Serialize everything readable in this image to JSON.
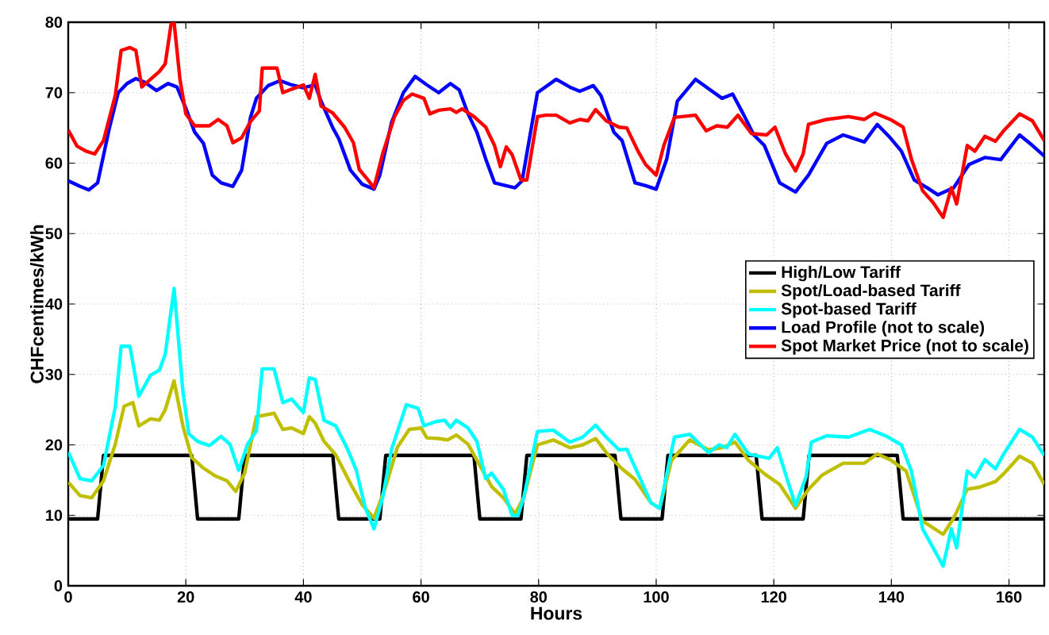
{
  "chart_data": {
    "type": "line",
    "xlabel": "Hours",
    "ylabel": "CHFcentimes/kWh",
    "xlim": [
      0,
      166
    ],
    "ylim": [
      0,
      80
    ],
    "xticks": [
      0,
      20,
      40,
      60,
      80,
      100,
      120,
      140,
      160
    ],
    "yticks": [
      0,
      10,
      20,
      30,
      40,
      50,
      60,
      70,
      80
    ],
    "grid": true,
    "legend": "right",
    "marker": "none",
    "line_style": "solid",
    "series": [
      {
        "name": "High/Low Tariff",
        "color": "#000000",
        "x": [
          0,
          5,
          6,
          21,
          22,
          29,
          30,
          45,
          46,
          53,
          54,
          69,
          70,
          77,
          78,
          93,
          94,
          101,
          102,
          117,
          118,
          125,
          126,
          141,
          142,
          166
        ],
        "values": [
          9.5,
          9.5,
          18.5,
          18.5,
          9.5,
          9.5,
          18.5,
          18.5,
          9.5,
          9.5,
          18.5,
          18.5,
          9.5,
          9.5,
          18.5,
          18.5,
          9.5,
          9.5,
          18.5,
          18.5,
          9.5,
          9.5,
          18.5,
          18.5,
          9.5,
          9.5
        ]
      },
      {
        "name": "Spot/Load-based Tariff",
        "color": "#bfbf00",
        "x": [
          0,
          2,
          4,
          6,
          8,
          9.5,
          11,
          12,
          14,
          15.5,
          16.5,
          18,
          19.5,
          21,
          23,
          25,
          27,
          28.5,
          30,
          32,
          35,
          36.5,
          38,
          40,
          41,
          42,
          43.5,
          45.5,
          48,
          50,
          52,
          54,
          56,
          58,
          60,
          61,
          63,
          64.5,
          66,
          68,
          70,
          72,
          74,
          76,
          77.5,
          79.8,
          82.5,
          85.3,
          87.5,
          89.7,
          91.9,
          94.2,
          96.4,
          99.1,
          100.6,
          102.6,
          105.7,
          108.9,
          111.2,
          113.4,
          115.7,
          118.4,
          121,
          123.7,
          125.9,
          128.2,
          131.8,
          135.4,
          137.6,
          139.8,
          142.5,
          145.3,
          148.8,
          150.6,
          152.9,
          155,
          157.7,
          159.1,
          161.8,
          164,
          166
        ],
        "values": [
          14.7,
          12.8,
          12.5,
          14.9,
          20.1,
          25.5,
          26,
          22.7,
          23.7,
          23.5,
          25,
          29.1,
          22.7,
          18.2,
          16.7,
          15.6,
          14.9,
          13.4,
          16,
          24,
          24.5,
          22.2,
          22.4,
          21.6,
          24,
          23.1,
          20.5,
          18.6,
          14.5,
          11.5,
          9.6,
          14.1,
          19.7,
          22.2,
          22.4,
          21,
          20.9,
          20.7,
          21.4,
          20.1,
          17.1,
          14.1,
          12.5,
          10.2,
          12.6,
          20,
          20.7,
          19.6,
          20,
          20.9,
          18.5,
          16.6,
          15.1,
          11.8,
          11,
          17.8,
          20.7,
          19.3,
          19.6,
          20.4,
          17.8,
          15.9,
          14.4,
          11,
          13.7,
          15.7,
          17.4,
          17.4,
          18.7,
          17.9,
          16.3,
          9.2,
          7.3,
          9.6,
          13.7,
          14,
          14.8,
          15.9,
          18.4,
          17.4,
          14.4
        ]
      },
      {
        "name": "Spot-based Tariff",
        "color": "#00ffff",
        "x": [
          0,
          2,
          4,
          6,
          8,
          9,
          10.5,
          12,
          14,
          15.5,
          16.5,
          18,
          19.5,
          20.5,
          22,
          24,
          26,
          27.5,
          29,
          30.5,
          32,
          33,
          35,
          36.5,
          38,
          40,
          41,
          42,
          43.5,
          45.5,
          47.5,
          49,
          50.5,
          52,
          53.5,
          55,
          57.5,
          59.5,
          60.5,
          62.5,
          64,
          65,
          66,
          68,
          69.5,
          71,
          72,
          74,
          75.5,
          76.5,
          77.5,
          79.8,
          82.5,
          85.3,
          87.5,
          89.7,
          91.5,
          93.7,
          95,
          96.9,
          99.1,
          100.6,
          103.1,
          105.7,
          108.9,
          110.7,
          112,
          113.4,
          115.7,
          119.2,
          120.6,
          122.4,
          123.7,
          125.5,
          126.4,
          129,
          132.7,
          136.3,
          139,
          141.7,
          143.4,
          145.3,
          147.1,
          148.8,
          150.2,
          151.1,
          152.9,
          154.2,
          155.9,
          157.7,
          159.1,
          161.8,
          164,
          166
        ],
        "values": [
          19,
          15.2,
          14.9,
          17.1,
          25.4,
          34,
          34,
          26.9,
          29.9,
          30.6,
          32.9,
          42.2,
          27.6,
          21.6,
          20.5,
          19.9,
          21.2,
          20.1,
          16.4,
          20.1,
          22,
          30.8,
          30.8,
          26,
          26.5,
          24.6,
          29.5,
          29.3,
          23.5,
          22.7,
          19.4,
          16.4,
          11.1,
          8.1,
          12.6,
          19.4,
          25.7,
          25.2,
          22.7,
          23.3,
          23.5,
          22.5,
          23.5,
          22.4,
          20.5,
          15.2,
          16,
          13.7,
          10,
          10,
          12.6,
          21.9,
          22.1,
          20.4,
          21.1,
          22.8,
          21.1,
          19.3,
          19.4,
          15.9,
          11.8,
          11,
          21.1,
          21.5,
          18.9,
          20,
          19.6,
          21.5,
          18.7,
          18.1,
          19.6,
          14.8,
          11.4,
          15.5,
          20.4,
          21.3,
          21.1,
          22.2,
          21.3,
          20,
          16.3,
          8.1,
          5.4,
          2.8,
          8.1,
          5.4,
          16.3,
          15.4,
          17.9,
          16.6,
          18.7,
          22.2,
          21.1,
          18.5
        ]
      },
      {
        "name": "Load Profile (not to scale)",
        "color": "#0000ff",
        "x": [
          0,
          2,
          3.5,
          5,
          7,
          8.5,
          10,
          11.5,
          13,
          15,
          17,
          18.5,
          20,
          21.5,
          23,
          24.5,
          26,
          28,
          29.5,
          31,
          32,
          34,
          36,
          38,
          40,
          42,
          43,
          45,
          46,
          48,
          50,
          52,
          53,
          55,
          57,
          59,
          61,
          63,
          65,
          66.5,
          68,
          69.5,
          71,
          72.5,
          74,
          76,
          77.2,
          79.8,
          83,
          85.3,
          87,
          89.3,
          90.6,
          92.8,
          94.2,
          96.4,
          98.2,
          100,
          101.8,
          103.6,
          106.7,
          109,
          111.2,
          113,
          114.8,
          116.6,
          118.4,
          121,
          123.7,
          125.9,
          129,
          131.8,
          135.4,
          137.6,
          139.8,
          141.7,
          143.9,
          146.1,
          147.9,
          150.6,
          153.2,
          155.9,
          158.6,
          161.8,
          164,
          166
        ],
        "values": [
          57.5,
          56.7,
          56.2,
          57.2,
          65,
          70,
          71.3,
          72,
          71.5,
          70.3,
          71.3,
          70.8,
          67.8,
          64.4,
          62.8,
          58.3,
          57.2,
          56.7,
          59,
          66.5,
          69.2,
          71,
          71.7,
          71.1,
          70.7,
          71.1,
          68.8,
          65,
          63.5,
          59,
          57,
          56.3,
          58.3,
          65.8,
          70,
          72.3,
          71.1,
          70,
          71.3,
          70.4,
          67,
          64.4,
          60.6,
          57.2,
          56.9,
          56.5,
          57.5,
          70,
          71.9,
          70.8,
          70.2,
          71,
          69.6,
          64.4,
          63.2,
          57.2,
          56.8,
          56.3,
          60.6,
          68.8,
          71.9,
          70.5,
          69.2,
          69.8,
          67,
          64,
          62.5,
          57.2,
          55.9,
          58.3,
          62.8,
          64,
          63,
          65.5,
          63.6,
          61.7,
          57.6,
          56.5,
          55.5,
          56.5,
          59.8,
          60.8,
          60.5,
          64,
          62.5,
          61
        ]
      },
      {
        "name": "Spot Market Price (not to scale)",
        "color": "#ff0000",
        "x": [
          0,
          1.5,
          3,
          4.5,
          6,
          8,
          9,
          10.5,
          11.5,
          12.5,
          14,
          15.5,
          16.5,
          17.5,
          18,
          19,
          20,
          21.5,
          24,
          25.5,
          27,
          28,
          29.5,
          31,
          32.5,
          33,
          35.5,
          36.5,
          38,
          40,
          41,
          42,
          43,
          45,
          47,
          48.5,
          49.5,
          51,
          52,
          53.5,
          55.5,
          57,
          58.5,
          60.5,
          61.5,
          63,
          65,
          66,
          67,
          69,
          71,
          72.5,
          73.5,
          74.5,
          75.5,
          77,
          78,
          79.8,
          81.2,
          83,
          85.3,
          87,
          88.4,
          89.7,
          91.5,
          93.7,
          95,
          96.9,
          98.2,
          100,
          101.3,
          103.1,
          106.7,
          108.5,
          110.3,
          112.1,
          113.9,
          116.2,
          118.8,
          120.2,
          122,
          123.7,
          125,
          125.9,
          129,
          132.7,
          135.4,
          137.2,
          139.8,
          142,
          143.4,
          145.3,
          147.1,
          148.8,
          150.2,
          151.1,
          152.9,
          154.2,
          155.9,
          157.7,
          159.1,
          161.8,
          164,
          166
        ],
        "values": [
          64.7,
          62.4,
          61.7,
          61.3,
          63.2,
          69.6,
          76,
          76.4,
          76,
          70.8,
          71.9,
          73,
          74.1,
          79.8,
          80,
          71.9,
          67,
          65.3,
          65.3,
          66.2,
          65.3,
          62.9,
          63.6,
          65.9,
          67.4,
          73.5,
          73.5,
          70,
          70.5,
          71.1,
          69.2,
          72.6,
          68.1,
          67.1,
          65.1,
          62.9,
          59.1,
          57.6,
          56.5,
          61.4,
          66.6,
          68.9,
          69.8,
          69.2,
          67,
          67.5,
          67.7,
          67.2,
          67.7,
          66.6,
          65.1,
          62.5,
          59.5,
          62.3,
          61.2,
          57.6,
          57.6,
          66.6,
          66.8,
          66.8,
          65.7,
          66.2,
          66,
          67.6,
          66,
          65.1,
          65,
          61.7,
          59.8,
          58.3,
          62.5,
          66.5,
          66.8,
          64.6,
          65.3,
          65.1,
          66.8,
          64.2,
          64,
          65.1,
          61.3,
          58.9,
          61.3,
          65.5,
          66.2,
          66.6,
          66.2,
          67.1,
          66.2,
          65.1,
          60.6,
          56.1,
          54.4,
          52.3,
          56.5,
          54.2,
          62.5,
          61.7,
          63.8,
          63.1,
          64.6,
          67,
          66,
          63.2
        ]
      }
    ]
  }
}
